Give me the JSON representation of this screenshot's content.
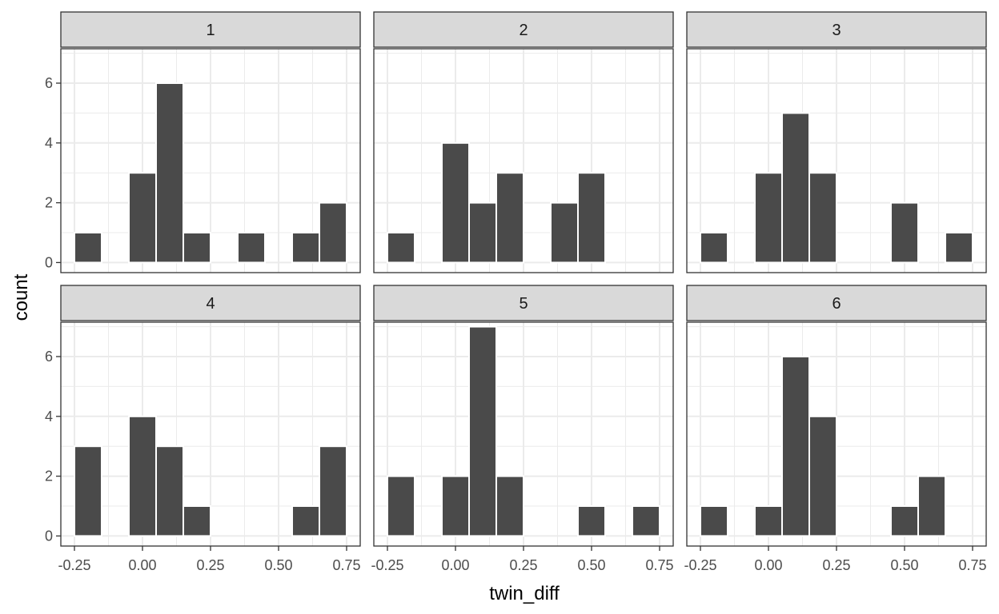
{
  "chart_data": {
    "type": "bar",
    "layout": "facet-wrap 2 rows x 3 columns",
    "xlabel": "twin_diff",
    "ylabel": "count",
    "xlim": [
      -0.25,
      0.75
    ],
    "ylim": [
      0,
      7
    ],
    "x_ticks": [
      "-0.25",
      "0.00",
      "0.25",
      "0.50",
      "0.75"
    ],
    "y_ticks": [
      "0",
      "2",
      "4",
      "6"
    ],
    "bin_width": 0.1,
    "bin_centers": [
      -0.2,
      -0.1,
      0.0,
      0.1,
      0.2,
      0.3,
      0.4,
      0.5,
      0.6,
      0.7
    ],
    "grid": true,
    "colors": {
      "bar": "#4a4a4a",
      "strip": "#d9d9d9",
      "grid": "#ebebeb",
      "border": "#333333"
    },
    "panels": [
      {
        "label": "1",
        "counts": [
          1,
          0,
          3,
          6,
          1,
          0,
          1,
          0,
          1,
          2
        ]
      },
      {
        "label": "2",
        "counts": [
          1,
          0,
          4,
          2,
          3,
          0,
          2,
          3,
          0,
          0
        ]
      },
      {
        "label": "3",
        "counts": [
          1,
          0,
          3,
          5,
          3,
          0,
          0,
          2,
          0,
          1
        ]
      },
      {
        "label": "4",
        "counts": [
          3,
          0,
          4,
          3,
          1,
          0,
          0,
          0,
          1,
          3
        ]
      },
      {
        "label": "5",
        "counts": [
          2,
          0,
          2,
          7,
          2,
          0,
          0,
          1,
          0,
          1
        ]
      },
      {
        "label": "6",
        "counts": [
          1,
          0,
          1,
          6,
          4,
          0,
          0,
          1,
          2,
          0
        ]
      }
    ]
  }
}
